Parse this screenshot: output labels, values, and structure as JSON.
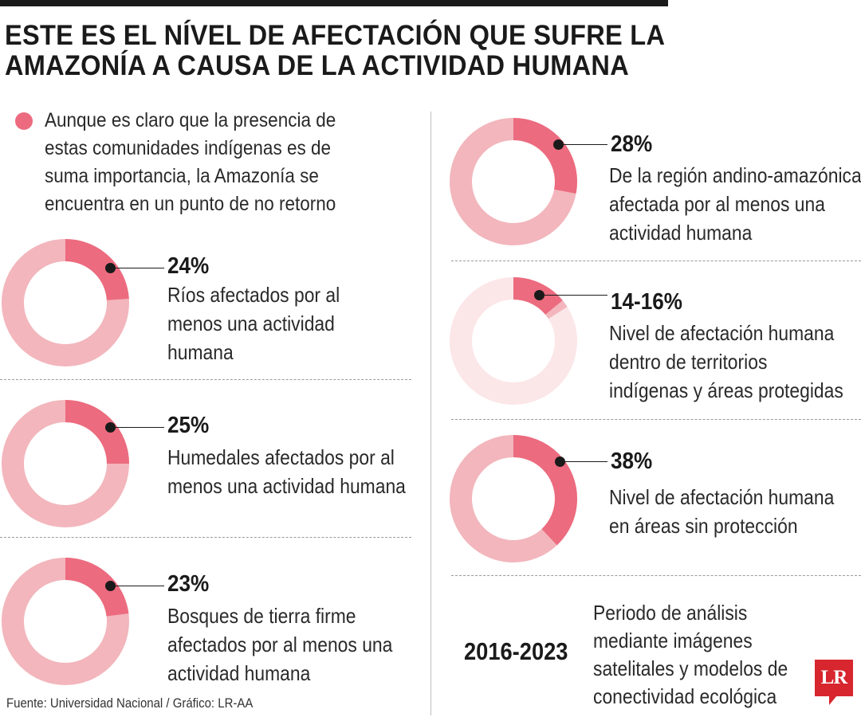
{
  "title": {
    "line1": "ESTE ES EL NÍVEL DE AFECTACIÓN QUE SUFRE LA",
    "line2": "AMAZONÍA A CAUSA DE LA ACTIVIDAD HUMANA"
  },
  "intro": "Aunque es claro que la presencia de estas comunidades indígenas es de suma importancia, la Amazonía se encuentra en un punto de no retorno",
  "colors": {
    "accent": "#ec6b7f",
    "ring": "#f2b6bc",
    "ring_light": "#fbe6e8",
    "text": "#1a1a1a"
  },
  "chart_data": {
    "type": "pie",
    "variant": "donut",
    "items": [
      {
        "id": "rios",
        "value": 24,
        "label": "24%",
        "description": "Ríos afectados por al menos una actividad humana"
      },
      {
        "id": "humedales",
        "value": 25,
        "label": "25%",
        "description": "Humedales afectados por al menos una actividad humana"
      },
      {
        "id": "bosques",
        "value": 23,
        "label": "23%",
        "description": "Bosques de tierra firme afectados por al menos una actividad humana"
      },
      {
        "id": "andino",
        "value": 28,
        "label": "28%",
        "description": "De la región andino-amazónica afectada por al menos una actividad humana"
      },
      {
        "id": "indigenas",
        "value": 14,
        "value_max": 16,
        "label": "14-16%",
        "description": "Nivel de afectación humana dentro de territorios indígenas y áreas protegidas"
      },
      {
        "id": "sin_proteccion",
        "value": 38,
        "label": "38%",
        "description": "Nivel de afectación humana en áreas sin protección"
      }
    ]
  },
  "period": {
    "years": "2016-2023",
    "description": "Periodo de análisis mediante imágenes satelitales y modelos de conectividad ecológica"
  },
  "source": "Fuente: Universidad Nacional / Gráfico: LR-AA",
  "logo": "LR"
}
